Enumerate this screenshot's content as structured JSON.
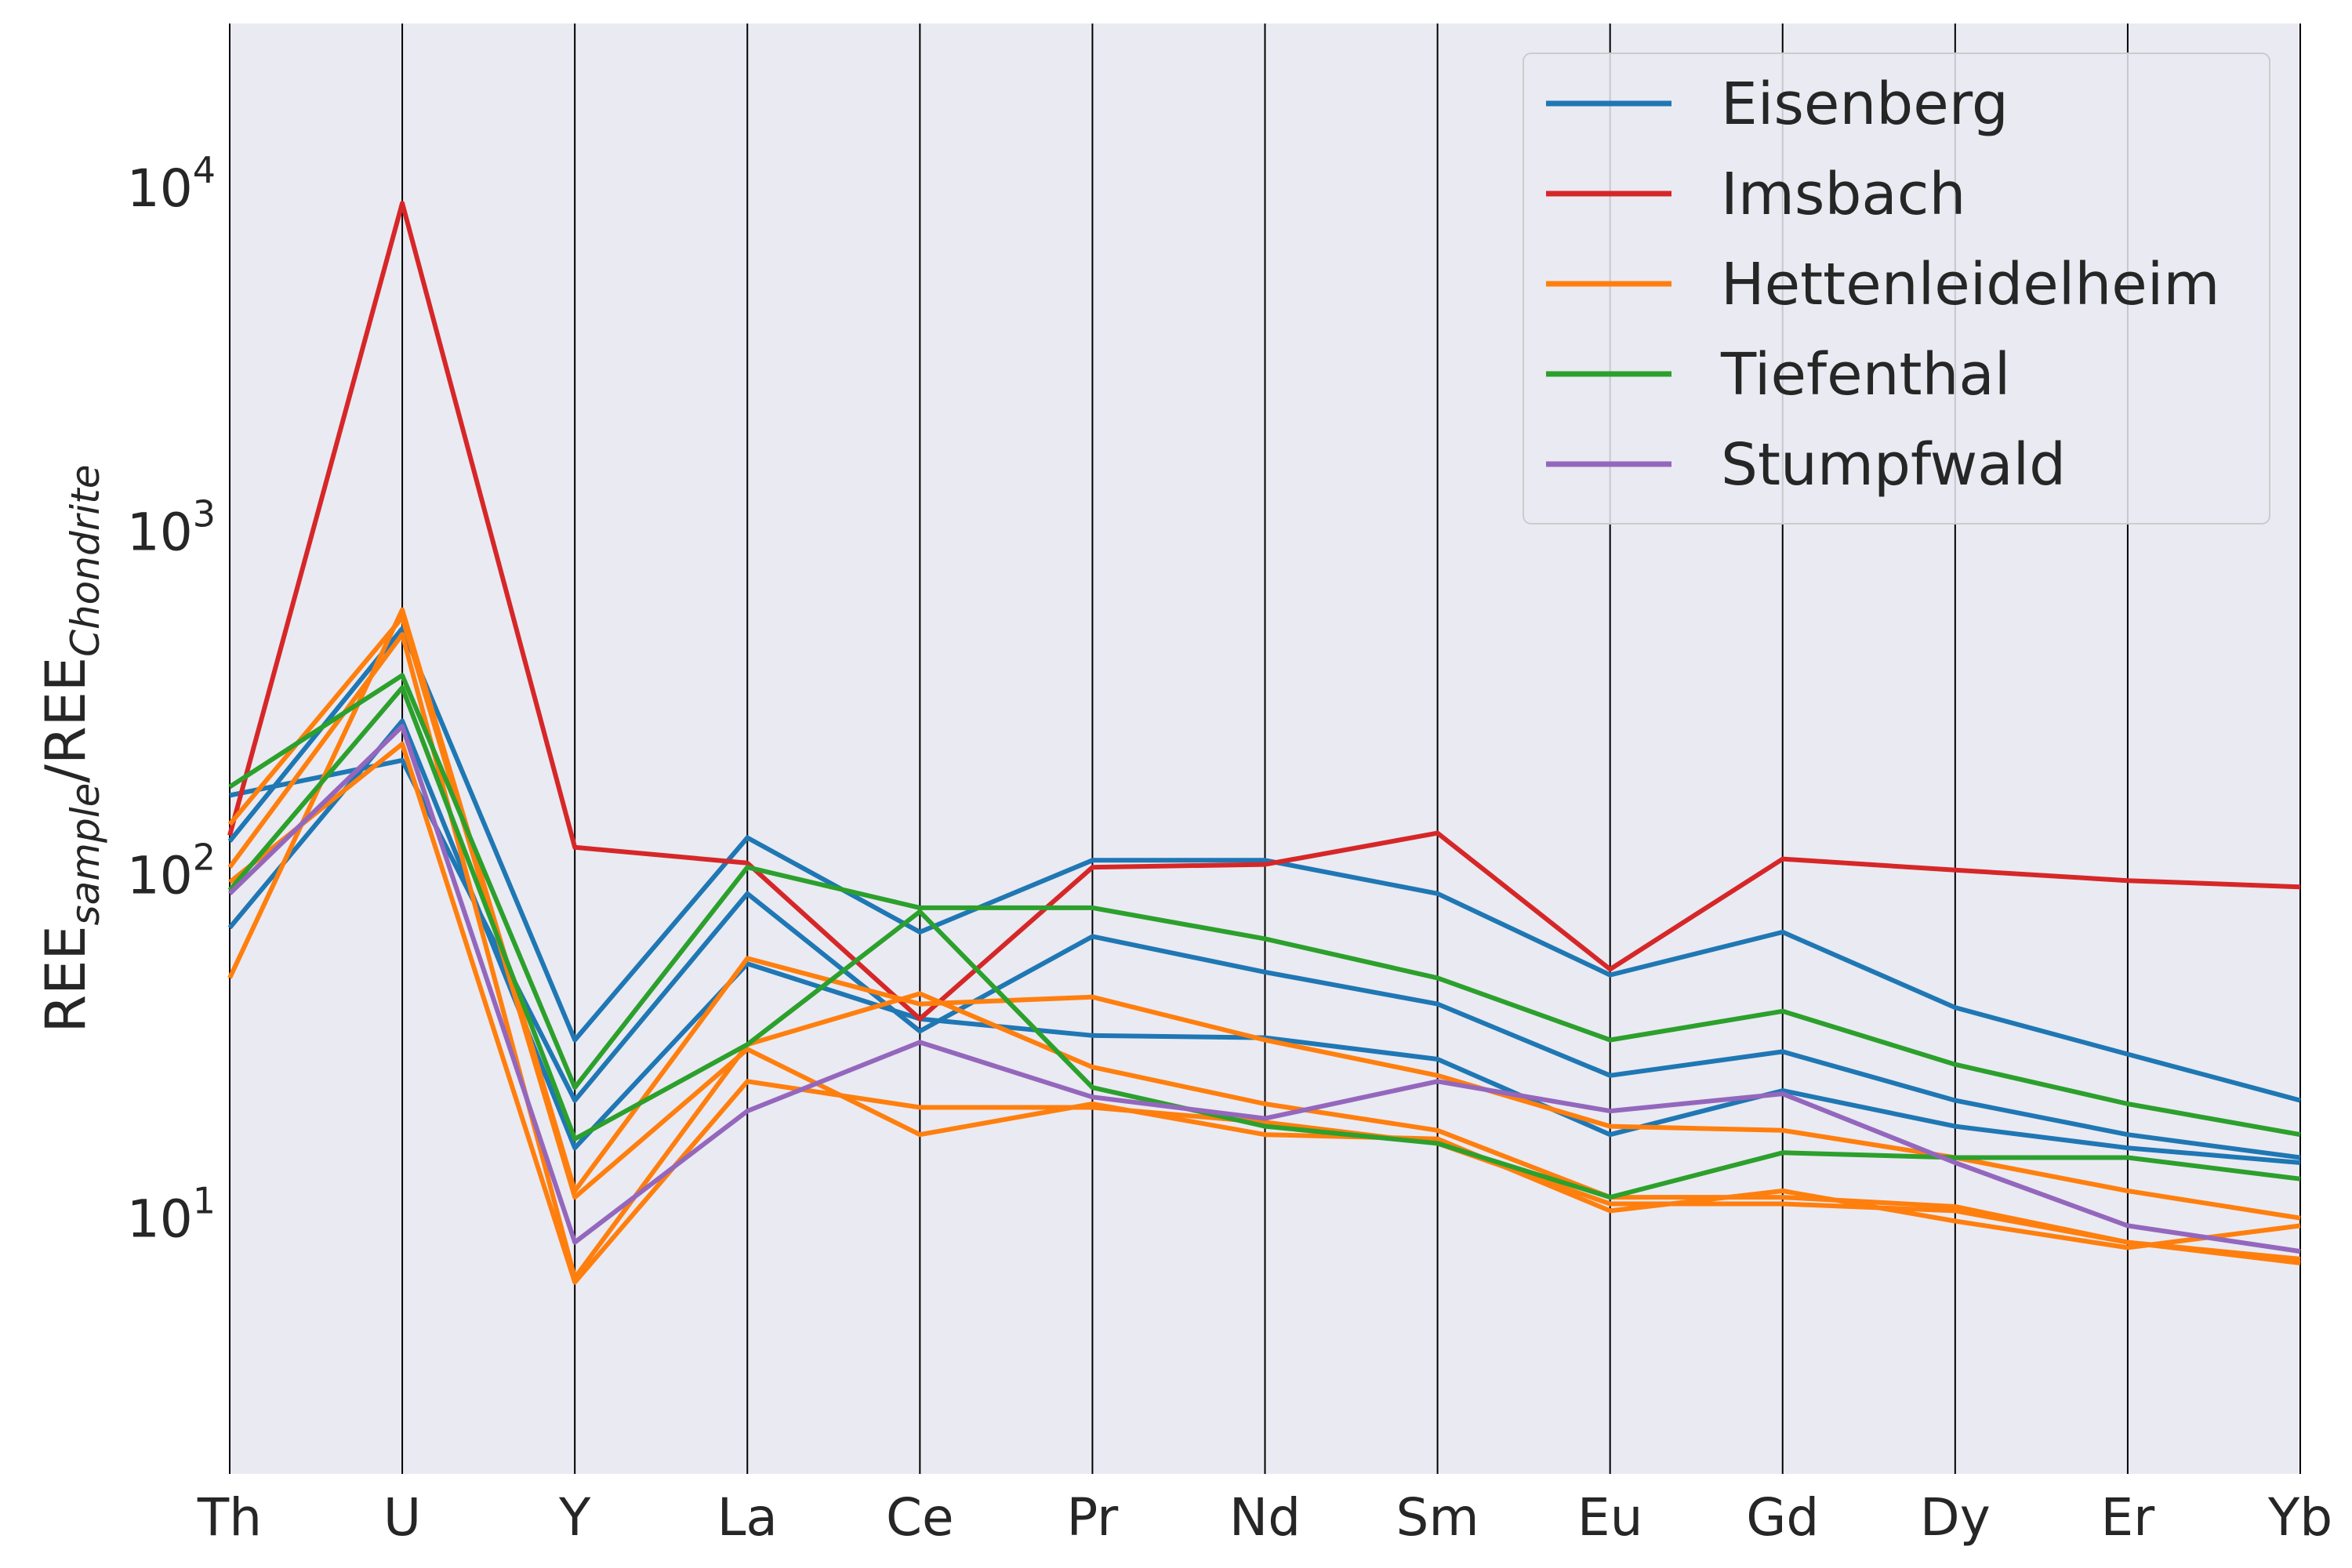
{
  "chart_data": {
    "type": "line",
    "chart_kind": "parallel coordinates",
    "categories": [
      "Th",
      "U",
      "Y",
      "La",
      "Ce",
      "Pr",
      "Nd",
      "Sm",
      "Eu",
      "Gd",
      "Dy",
      "Er",
      "Yb"
    ],
    "ylabel": {
      "main": "REE",
      "sub1": "sample",
      "slash": "/",
      "main2": "REE",
      "sub2": "Chondrite"
    },
    "yscale": "log",
    "ylim": [
      1.8,
      30000
    ],
    "yticks": [
      {
        "value": 10,
        "base": "10",
        "exp": "1"
      },
      {
        "value": 100,
        "base": "10",
        "exp": "2"
      },
      {
        "value": 1000,
        "base": "10",
        "exp": "3"
      },
      {
        "value": 10000,
        "base": "10",
        "exp": "4"
      }
    ],
    "grid": "vertical lines at each category",
    "legend_position": "top-right",
    "legend": [
      {
        "name": "Eisenberg",
        "color": "#1f77b4"
      },
      {
        "name": "Imsbach",
        "color": "#d62728"
      },
      {
        "name": "Hettenleidelheim",
        "color": "#ff7f0e"
      },
      {
        "name": "Tiefenthal",
        "color": "#2ca02c"
      },
      {
        "name": "Stumpfwald",
        "color": "#9467bd"
      }
    ],
    "series": [
      {
        "group": "Eisenberg",
        "color": "#1f77b4",
        "values": [
          125,
          520,
          33,
          128,
          68,
          110,
          110,
          88,
          51,
          68,
          41,
          30,
          22
        ]
      },
      {
        "group": "Eisenberg",
        "color": "#1f77b4",
        "values": [
          170,
          215,
          22,
          88,
          35,
          66,
          52,
          42,
          26,
          30.5,
          22,
          17.5,
          15
        ]
      },
      {
        "group": "Eisenberg",
        "color": "#1f77b4",
        "values": [
          70,
          280,
          16,
          55,
          38,
          34,
          33.5,
          29,
          17.5,
          23.5,
          18.5,
          16,
          14.5
        ]
      },
      {
        "group": "Imsbach",
        "color": "#d62728",
        "values": [
          130,
          9000,
          120,
          108,
          38,
          105,
          107,
          132,
          53,
          111,
          103,
          96,
          92
        ]
      },
      {
        "group": "Hettenleidelheim",
        "color": "#ff7f0e",
        "values": [
          50,
          590,
          12,
          57,
          42,
          44,
          33,
          26,
          18.5,
          18,
          15,
          12,
          10
        ]
      },
      {
        "group": "Hettenleidelheim",
        "color": "#ff7f0e",
        "values": [
          105,
          500,
          6.7,
          32,
          45,
          27.5,
          21.5,
          18,
          11.5,
          11.5,
          10.8,
          8.5,
          7.6
        ]
      },
      {
        "group": "Hettenleidelheim",
        "color": "#ff7f0e",
        "values": [
          140,
          560,
          11.5,
          31,
          17.5,
          21.5,
          17.5,
          17,
          10.5,
          12,
          9.8,
          8.2,
          9.5
        ]
      },
      {
        "group": "Hettenleidelheim",
        "color": "#ff7f0e",
        "values": [
          95,
          240,
          6.5,
          25,
          21,
          21,
          19,
          16.5,
          11,
          11,
          10.5,
          8.5,
          7.4
        ]
      },
      {
        "group": "Tiefenthal",
        "color": "#2ca02c",
        "values": [
          180,
          380,
          24,
          105,
          80,
          80,
          65,
          50,
          33,
          40,
          28,
          21.5,
          17.5
        ]
      },
      {
        "group": "Tiefenthal",
        "color": "#2ca02c",
        "values": [
          90,
          350,
          17,
          32,
          78,
          24,
          18.5,
          16.5,
          11.5,
          15.5,
          15,
          15,
          13
        ]
      },
      {
        "group": "Stumpfwald",
        "color": "#9467bd",
        "values": [
          88,
          270,
          8.5,
          20.5,
          32.5,
          22.5,
          19.5,
          25,
          20.5,
          23,
          14.5,
          9.5,
          8
        ]
      }
    ]
  }
}
